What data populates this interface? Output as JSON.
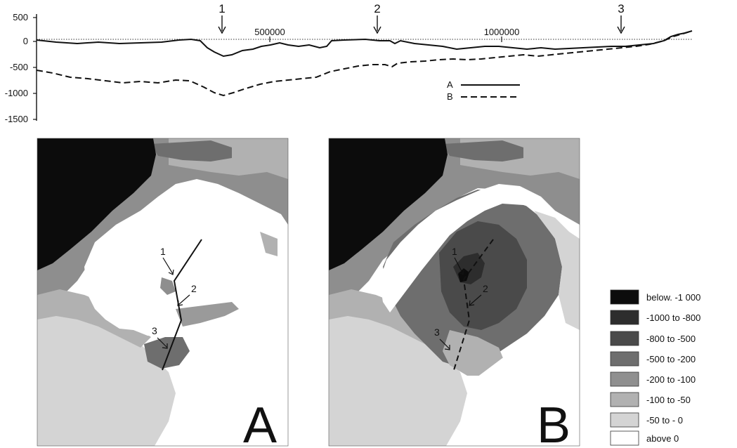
{
  "profile": {
    "y_ticks": [
      "500",
      "0",
      "-500",
      "-1000",
      "-1500"
    ],
    "x_ticks": [
      "500000",
      "1000000"
    ],
    "markers": [
      "1",
      "2",
      "3"
    ],
    "legend": [
      {
        "label": "A",
        "style": "solid"
      },
      {
        "label": "B",
        "style": "dashed"
      }
    ]
  },
  "maps": {
    "panel_a": {
      "letter": "A",
      "points": [
        "1",
        "2",
        "3"
      ]
    },
    "panel_b": {
      "letter": "B",
      "points": [
        "1",
        "2",
        "3"
      ]
    }
  },
  "legend": {
    "items": [
      {
        "label": "below. -1 000",
        "color": "#0c0c0c"
      },
      {
        "label": "-1000 to -800",
        "color": "#2d2d2d"
      },
      {
        "label": "-800 to -500",
        "color": "#4a4a4a"
      },
      {
        "label": "-500 to -200",
        "color": "#6e6e6e"
      },
      {
        "label": "-200 to -100",
        "color": "#8f8f8f"
      },
      {
        "label": "-100 to -50",
        "color": "#b1b1b1"
      },
      {
        "label": "-50 to - 0",
        "color": "#d4d4d4"
      },
      {
        "label": "above 0",
        "color": "#ffffff"
      }
    ]
  },
  "colors": {
    "ocean": "#0c0c0c",
    "shelf": "#7a7a7a",
    "land": "#ffffff",
    "ink": "#111111"
  }
}
